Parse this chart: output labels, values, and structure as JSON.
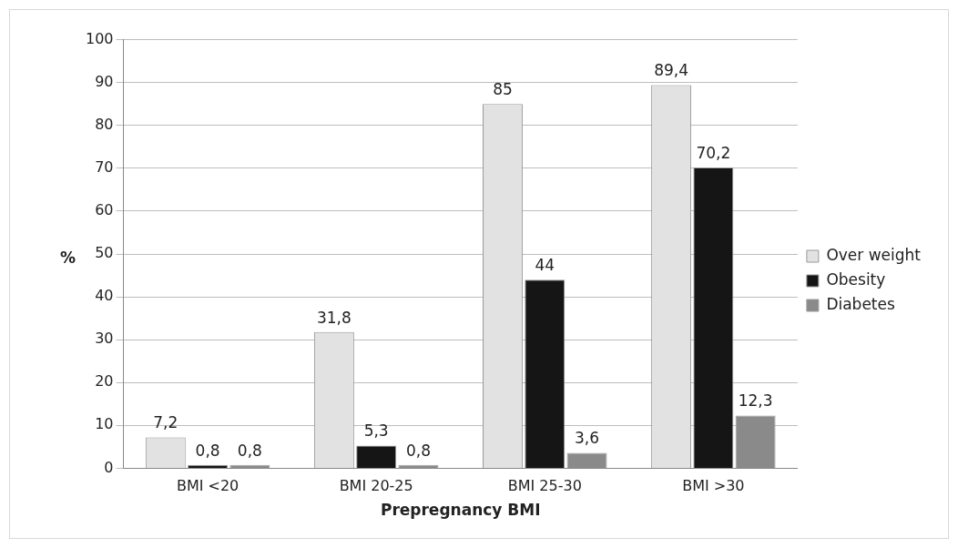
{
  "chart_data": {
    "type": "bar",
    "xlabel": "Prepregnancy BMI",
    "ylabel": "%",
    "categories": [
      "BMI <20",
      "BMI 20-25",
      "BMI 25-30",
      "BMI >30"
    ],
    "series": [
      {
        "name": "Over weight",
        "color": "#e2e2e2",
        "values": [
          7.2,
          31.8,
          85,
          89.4
        ],
        "value_labels": [
          "7,2",
          "31,8",
          "85",
          "89,4"
        ]
      },
      {
        "name": "Obesity",
        "color": "#151515",
        "values": [
          0.8,
          5.3,
          44,
          70.2
        ],
        "value_labels": [
          "0,8",
          "5,3",
          "44",
          "70,2"
        ]
      },
      {
        "name": "Diabetes",
        "color": "#8a8a8a",
        "values": [
          0.8,
          0.8,
          3.6,
          12.3
        ],
        "value_labels": [
          "0,8",
          "0,8",
          "3,6",
          "12,3"
        ]
      }
    ],
    "ylim": [
      0,
      100
    ],
    "yticks": [
      0,
      10,
      20,
      30,
      40,
      50,
      60,
      70,
      80,
      90,
      100
    ],
    "grid": "y",
    "legend": "right"
  }
}
